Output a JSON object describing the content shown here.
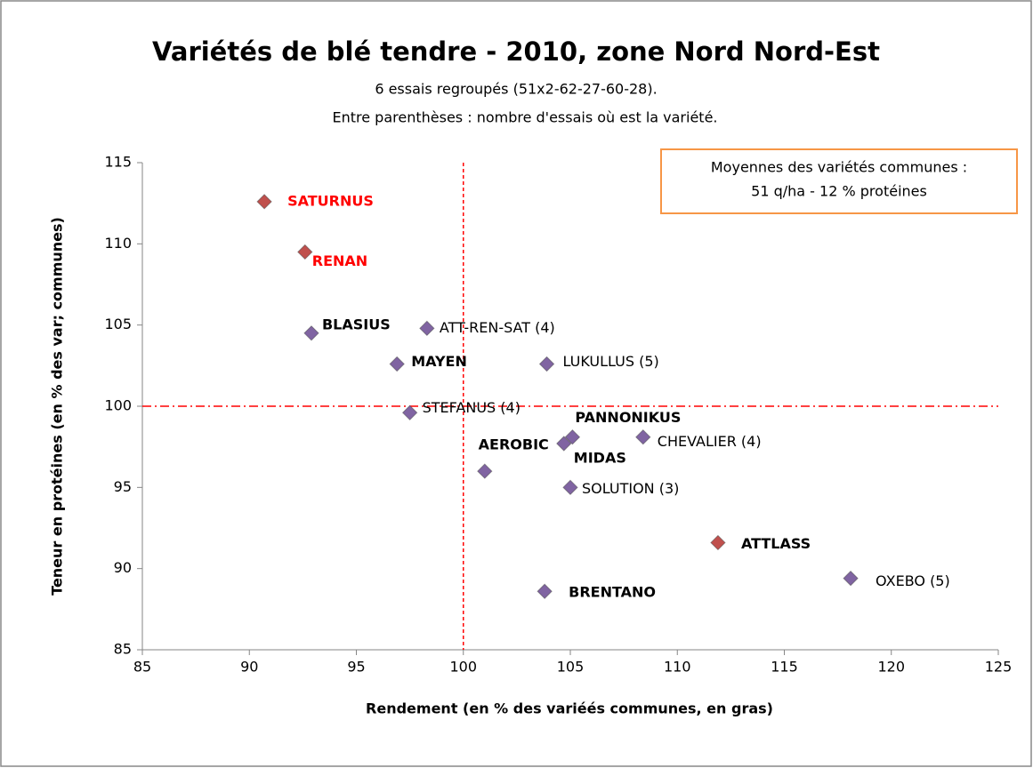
{
  "chart_data": {
    "type": "scatter",
    "title": "Variétés de blé tendre - 2010, zone Nord Nord-Est",
    "subtitle": [
      "6 essais regroupés (51x2-62-27-60-28).",
      "Entre parenthèses : nombre d'essais où est la variété."
    ],
    "x_label": "Rendement (en % des variéés communes, en gras)",
    "y_label": "Teneur en protéines (en % des var; communes)",
    "annotation": [
      "Moyennes des variétés communes :",
      "51 q/ha  -  12 % protéines"
    ],
    "xlim": [
      85,
      125
    ],
    "xticks": [
      85,
      90,
      95,
      100,
      105,
      110,
      115,
      120,
      125
    ],
    "ylim": [
      85,
      115
    ],
    "yticks": [
      85,
      90,
      95,
      100,
      105,
      110,
      115
    ],
    "reference_x": 100,
    "reference_y": 100,
    "reference_color": "#ff0000",
    "labels": [
      "SATURNUS",
      "RENAN",
      "BLASIUS",
      "ATT-REN-SAT (4)",
      "MAYEN",
      "LUKULLUS (5)",
      "STEFANUS (4)",
      "PANNONIKUS",
      "MIDAS",
      "CHEVALIER (4)",
      "AEROBIC",
      "SOLUTION (3)",
      "ATTLASS",
      "OXEBO (5)",
      "BRENTANO"
    ],
    "x": [
      90.7,
      92.6,
      92.9,
      98.3,
      96.9,
      103.9,
      97.5,
      105.1,
      104.7,
      108.4,
      101.0,
      105.0,
      111.9,
      118.1,
      103.8
    ],
    "y": [
      112.6,
      109.5,
      104.5,
      104.8,
      102.6,
      102.6,
      99.6,
      98.1,
      97.7,
      98.1,
      96.0,
      95.0,
      91.6,
      89.4,
      88.6
    ],
    "colors": [
      "#c0504d",
      "#c0504d",
      "#8064a2",
      "#8064a2",
      "#8064a2",
      "#8064a2",
      "#8064a2",
      "#8064a2",
      "#8064a2",
      "#8064a2",
      "#8064a2",
      "#8064a2",
      "#c0504d",
      "#8064a2",
      "#8064a2"
    ],
    "label_colors": [
      "#ff0000",
      "#ff0000",
      "#000000",
      "#000000",
      "#000000",
      "#000000",
      "#000000",
      "#000000",
      "#000000",
      "#000000",
      "#000000",
      "#000000",
      "#000000",
      "#000000",
      "#000000"
    ],
    "label_bold": [
      true,
      true,
      true,
      false,
      true,
      false,
      false,
      true,
      true,
      false,
      true,
      false,
      true,
      false,
      true
    ]
  }
}
